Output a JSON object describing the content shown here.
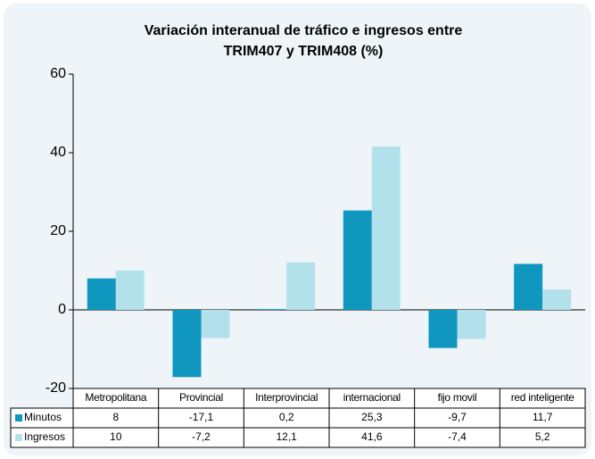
{
  "chart_data": {
    "type": "bar",
    "title": [
      "Variación interanual de tráfico e ingresos entre",
      "TRIM407 y TRIM408 (%)"
    ],
    "categories": [
      "Metropolitana",
      "Provincial",
      "Interprovincial",
      "internacional",
      "fijo movil",
      "red inteligente"
    ],
    "series": [
      {
        "name": "Minutos",
        "color": "#0f97bf",
        "values": [
          8,
          -17.1,
          0.2,
          25.3,
          -9.7,
          11.7
        ],
        "value_labels": [
          "8",
          "-17,1",
          "0,2",
          "25,3",
          "-9,7",
          "11,7"
        ]
      },
      {
        "name": "Ingresos",
        "color": "#b3e1eb",
        "values": [
          10,
          -7.2,
          12.1,
          41.6,
          -7.4,
          5.2
        ],
        "value_labels": [
          "10",
          "-7,2",
          "12,1",
          "41,6",
          "-7,4",
          "5,2"
        ]
      }
    ],
    "ylim": [
      -20,
      60
    ],
    "yticks": [
      -20,
      0,
      20,
      40,
      60
    ],
    "grid": false
  }
}
